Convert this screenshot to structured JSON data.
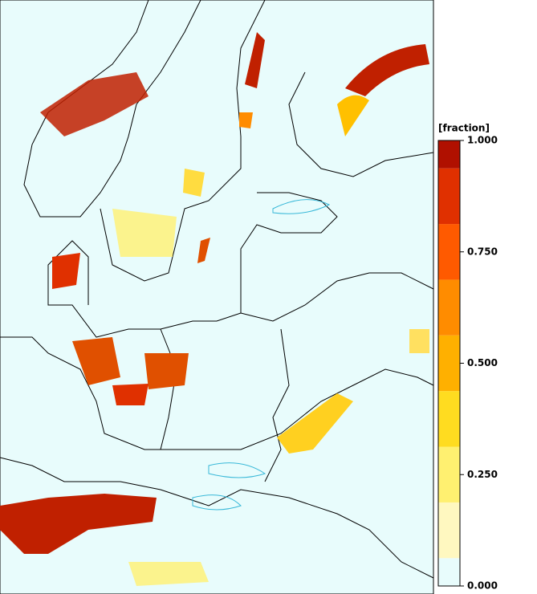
{
  "colorbar": {
    "label": "[fraction]",
    "bounds": [
      0,
      0.0625,
      0.1875,
      0.3125,
      0.4375,
      0.5625,
      0.6875,
      0.8125,
      0.9375,
      1
    ],
    "colors": [
      "#e8fcfc",
      "#fff8c0",
      "#fff070",
      "#ffdc20",
      "#ffb000",
      "#ff8c00",
      "#ff5a00",
      "#e03000",
      "#b01000"
    ],
    "ticks": [
      {
        "value": 0,
        "label": "0.000"
      },
      {
        "value": 0.25,
        "label": "0.250"
      },
      {
        "value": 0.5,
        "label": "0.500"
      },
      {
        "value": 0.75,
        "label": "0.750"
      },
      {
        "value": 1,
        "label": "1.000"
      }
    ]
  }
}
